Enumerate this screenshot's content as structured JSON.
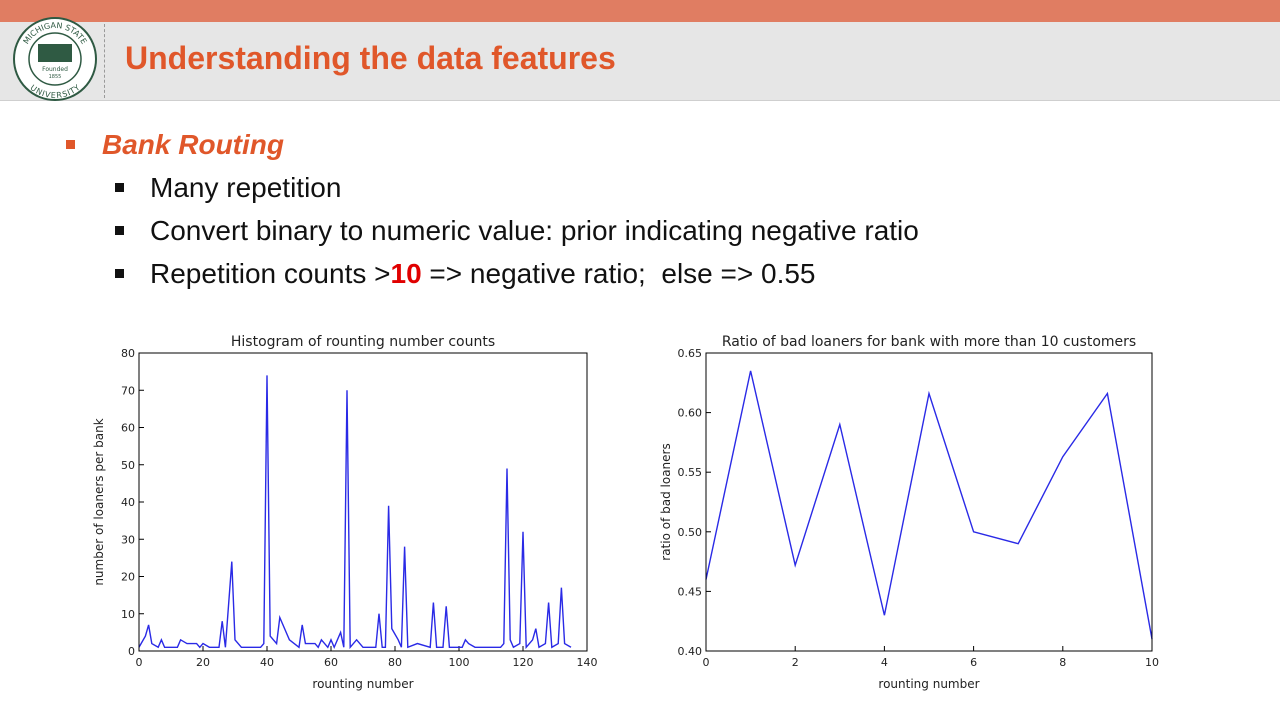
{
  "header": {
    "title": "Understanding the data features"
  },
  "logo": {
    "top": "MICHIGAN STATE",
    "bottom": "UNIVERSITY",
    "founded": "Founded",
    "year": "1855"
  },
  "bullets": {
    "heading": "Bank Routing",
    "items": [
      "Many repetition",
      "Convert binary to numeric value: prior indicating negative ratio"
    ],
    "last": {
      "before": "Repetition counts >",
      "highlight": "10",
      "after": " => negative ratio;  else => 0.55"
    }
  },
  "chart_data": [
    {
      "type": "line",
      "title": "Histogram of rounting number counts",
      "x_label": "rounting number",
      "y_label": "number of loaners per bank",
      "color": "#2a2ae6",
      "x": [
        0,
        2,
        3,
        4,
        6,
        7,
        8,
        12,
        13,
        15,
        18,
        19,
        20,
        22,
        25,
        26,
        27,
        29,
        30,
        32,
        38,
        39,
        40,
        41,
        43,
        44,
        47,
        50,
        51,
        52,
        55,
        56,
        57,
        59,
        60,
        61,
        63,
        64,
        65,
        66,
        68,
        70,
        74,
        75,
        76,
        77,
        78,
        79,
        81,
        82,
        83,
        84,
        87,
        91,
        92,
        93,
        95,
        96,
        97,
        101,
        102,
        103,
        105,
        113,
        114,
        115,
        116,
        117,
        119,
        120,
        121,
        123,
        124,
        125,
        127,
        128,
        129,
        131,
        132,
        133,
        135
      ],
      "values": [
        1,
        4,
        7,
        2,
        1,
        3,
        1,
        1,
        3,
        2,
        2,
        1,
        2,
        1,
        1,
        8,
        1,
        24,
        3,
        1,
        1,
        2,
        74,
        4,
        2,
        9,
        3,
        1,
        7,
        2,
        2,
        1,
        3,
        1,
        3,
        1,
        5,
        1,
        70,
        1,
        3,
        1,
        1,
        10,
        1,
        1,
        39,
        6,
        3,
        1,
        28,
        1,
        2,
        1,
        13,
        1,
        1,
        12,
        1,
        1,
        3,
        2,
        1,
        1,
        2,
        49,
        3,
        1,
        2,
        32,
        1,
        3,
        6,
        1,
        2,
        13,
        1,
        2,
        17,
        2,
        1
      ],
      "xlim": [
        0,
        140
      ],
      "xticks": [
        0,
        20,
        40,
        60,
        80,
        100,
        120,
        140
      ],
      "ylim": [
        0,
        80
      ],
      "yticks": [
        0,
        10,
        20,
        30,
        40,
        50,
        60,
        70,
        80
      ]
    },
    {
      "type": "line",
      "title": "Ratio of bad loaners for bank with more than 10 customers",
      "x_label": "rounting number",
      "y_label": "ratio of bad loaners",
      "color": "#2a2ae6",
      "x": [
        0,
        1,
        2,
        3,
        4,
        5,
        6,
        7,
        8,
        9,
        10
      ],
      "values": [
        0.46,
        0.635,
        0.472,
        0.59,
        0.43,
        0.616,
        0.5,
        0.49,
        0.563,
        0.616,
        0.41
      ],
      "xlim": [
        0,
        10
      ],
      "xticks": [
        0,
        2,
        4,
        6,
        8,
        10
      ],
      "ylim": [
        0.4,
        0.65
      ],
      "yticks": [
        {
          "value": 0.4,
          "label": "0.40"
        },
        0.45,
        {
          "value": 0.5,
          "label": "0.50"
        },
        0.55,
        {
          "value": 0.6,
          "label": "0.60"
        },
        0.65
      ]
    }
  ]
}
